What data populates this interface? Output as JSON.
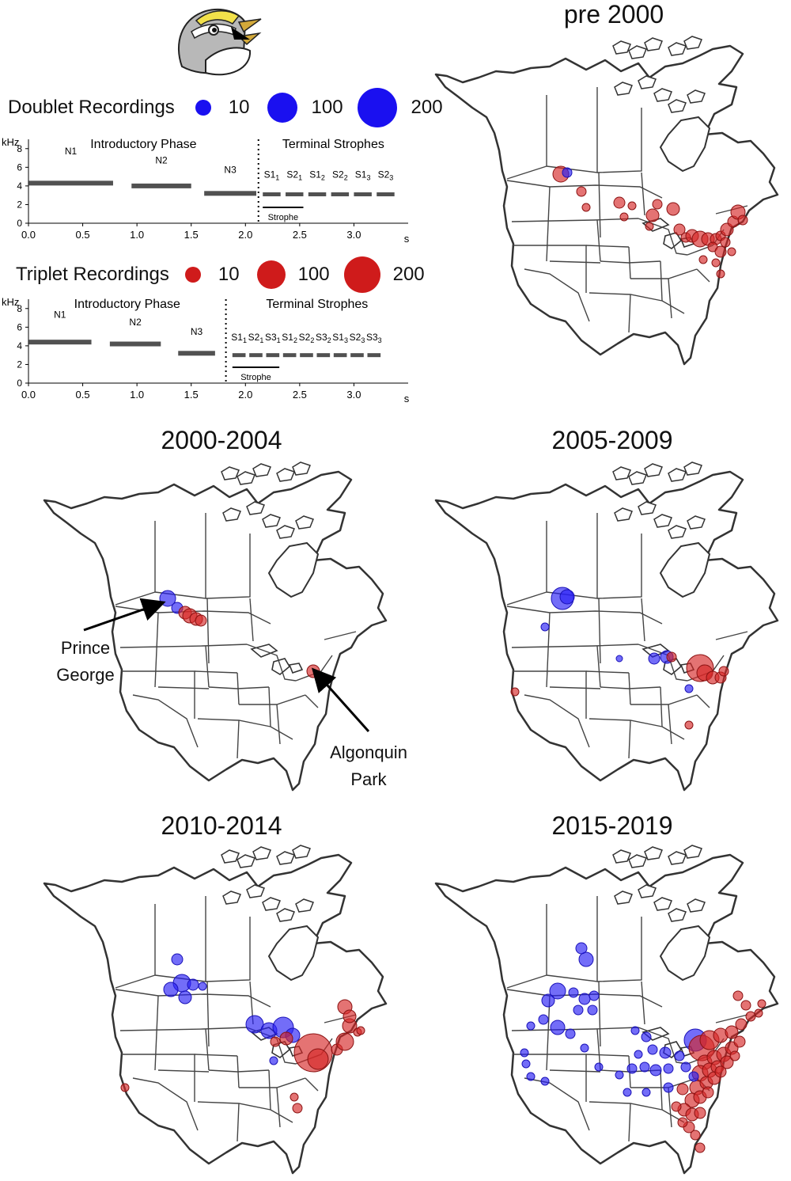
{
  "colors": {
    "doublet": "#1f1bf5",
    "triplet": "#d41f1f",
    "doublet_fill": "rgba(40,30,245,0.65)",
    "triplet_fill": "rgba(214,40,40,0.65)"
  },
  "icon": "white-throated-sparrow-head-icon",
  "legend": {
    "doublet": {
      "label": "Doublet Recordings",
      "sizes": [
        "10",
        "100",
        "200"
      ]
    },
    "triplet": {
      "label": "Triplet Recordings",
      "sizes": [
        "10",
        "100",
        "200"
      ]
    }
  },
  "spectrograms": [
    {
      "name": "doublet",
      "ylabel": "kHz",
      "xlabel": "s",
      "yticks": [
        "0",
        "2",
        "4",
        "6",
        "8"
      ],
      "xticks": [
        "0.0",
        "0.5",
        "1.0",
        "1.5",
        "2.0",
        "2.5",
        "3.0"
      ],
      "intro": "Introductory Phase",
      "terminal": "Terminal Strophes",
      "notes": [
        "N1",
        "N2",
        "N3"
      ],
      "strophe_label": "Strophe",
      "strophes": [
        [
          "S1",
          "1"
        ],
        [
          "S2",
          "1"
        ],
        [
          "S1",
          "2"
        ],
        [
          "S2",
          "2"
        ],
        [
          "S1",
          "3"
        ],
        [
          "S2",
          "3"
        ]
      ]
    },
    {
      "name": "triplet",
      "ylabel": "kHz",
      "xlabel": "s",
      "yticks": [
        "0",
        "2",
        "4",
        "6",
        "8"
      ],
      "xticks": [
        "0.0",
        "0.5",
        "1.0",
        "1.5",
        "2.0",
        "2.5",
        "3.0"
      ],
      "intro": "Introductory Phase",
      "terminal": "Terminal Strophes",
      "notes": [
        "N1",
        "N2",
        "N3"
      ],
      "strophe_label": "Strophe",
      "strophes": [
        [
          "S1",
          "1"
        ],
        [
          "S2",
          "1"
        ],
        [
          "S3",
          "1"
        ],
        [
          "S1",
          "2"
        ],
        [
          "S2",
          "2"
        ],
        [
          "S3",
          "2"
        ],
        [
          "S1",
          "3"
        ],
        [
          "S2",
          "3"
        ],
        [
          "S3",
          "3"
        ]
      ]
    }
  ],
  "maps": [
    {
      "title": "pre 2000"
    },
    {
      "title": "2000-2004"
    },
    {
      "title": "2005-2009"
    },
    {
      "title": "2010-2014"
    },
    {
      "title": "2015-2019"
    }
  ],
  "annotations": {
    "prince_george": "Prince\nGeorge",
    "algonquin": "Algonquin\nPark"
  }
}
